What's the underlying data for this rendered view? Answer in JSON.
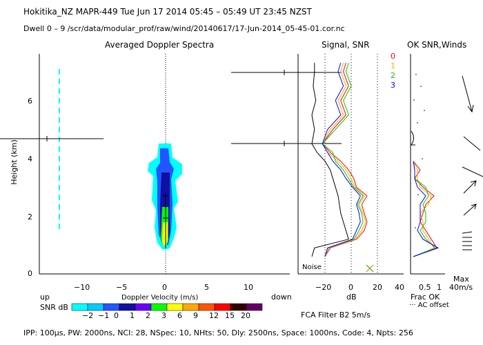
{
  "header": {
    "line1": "Hokitika_NZ   MAPR-449   Tue Jun 17 2014 05:45 – 05:49 UT 23:45 NZST",
    "line2": "Dwell   0 –   9    /scr/data/modular_prof/raw/wind/20140617/17-Jun-2014_05-45-01.cor.nc"
  },
  "footer": "IPP: 100μs,   PW: 2000ns,   NCI:  28,   NSpec: 10,  NHts: 50,   Dly: 2500ns,   Space: 1000ns,   Code: 4,   Npts: 256",
  "colorbar": {
    "label": "SNR dB",
    "ticks": [
      "−2",
      "−1",
      "0",
      "1",
      "2",
      "3",
      "6",
      "9",
      "12",
      "15",
      "20"
    ],
    "colors": [
      "#00ffff",
      "#00ccff",
      "#2255ff",
      "#1010a0",
      "#6a00ff",
      "#00ff00",
      "#ffff00",
      "#ffaa00",
      "#ff5500",
      "#ff0000",
      "#330000",
      "#660066"
    ]
  },
  "spectra_panel": {
    "title": "Averaged Doppler Spectra",
    "xlabel": "Doppler Velocity (m/s)",
    "ylabel": "Height (km)",
    "up_label": "up",
    "down_label": "down",
    "xticks": [
      "−10",
      "−5",
      "0",
      "5",
      "10"
    ],
    "yticks": [
      "0",
      "2",
      "4",
      "6"
    ]
  },
  "signal_panel": {
    "title": "Signal, SNR",
    "xlabel": "dB",
    "xticks": [
      "−20",
      "0",
      "20",
      "40"
    ],
    "noise_label": "Noise",
    "filter_label": "FCA Filter B2   5m/s"
  },
  "ok_panel": {
    "title": "OK SNR,Winds",
    "beam_labels": [
      {
        "text": "0",
        "color": "#ff0000"
      },
      {
        "text": "1",
        "color": "#ffaa00"
      },
      {
        "text": "2",
        "color": "#00cc00"
      },
      {
        "text": "3",
        "color": "#0000ff"
      }
    ],
    "xticks": [
      "0.5",
      "1"
    ],
    "frac_label": "Frac OK",
    "offset_label": "··· AC offset"
  },
  "wind_panel": {
    "max_label": "Max",
    "scale_label": "40m/s"
  },
  "chart_data": [
    {
      "type": "heatmap",
      "title": "Averaged Doppler Spectra",
      "xlabel": "Doppler Velocity (m/s)",
      "ylabel": "Height (km)",
      "xlim": [
        -19,
        15
      ],
      "ylim": [
        0,
        7.6
      ],
      "legend": "SNR dB",
      "series": [
        {
          "name": "main echo",
          "x_center": 0,
          "height_range_km": [
            0.8,
            4.5
          ]
        },
        {
          "name": "ground clutter line",
          "x_center": -12.5,
          "height_range_km": [
            1.4,
            7.1
          ]
        }
      ]
    },
    {
      "type": "line",
      "title": "Signal, SNR",
      "xlabel": "dB",
      "ylabel": "Height (km)",
      "xlim": [
        -40,
        40
      ],
      "ylim": [
        0,
        7.6
      ],
      "heights_km": [
        0.6,
        0.9,
        1.2,
        1.5,
        1.8,
        2.1,
        2.4,
        2.7,
        3.0,
        3.3,
        3.6,
        3.9,
        4.2,
        4.5,
        5.0,
        5.5,
        6.0,
        6.5,
        7.0,
        7.3
      ],
      "series": [
        {
          "name": "Noise",
          "x": [
            -30,
            -28,
            -2,
            -4,
            -6,
            -8,
            -9,
            -10,
            -12,
            -14,
            -16,
            -20,
            -26,
            -30,
            -28,
            -30,
            -27,
            -29,
            -28,
            -28
          ]
        },
        {
          "name": "0",
          "x": [
            -20,
            -16,
            4,
            10,
            12,
            10,
            8,
            12,
            4,
            2,
            -2,
            -8,
            -16,
            -22,
            -14,
            -4,
            -8,
            -2,
            -6,
            -4
          ]
        },
        {
          "name": "1",
          "x": [
            -20,
            -17,
            3,
            8,
            11,
            9,
            6,
            10,
            3,
            0,
            -4,
            -10,
            -18,
            -22,
            -16,
            -6,
            -10,
            -4,
            -8,
            -6
          ]
        },
        {
          "name": "2",
          "x": [
            -20,
            -18,
            2,
            6,
            9,
            8,
            5,
            9,
            2,
            -2,
            -6,
            -12,
            -14,
            -22,
            -12,
            -2,
            -6,
            0,
            -4,
            -2
          ]
        },
        {
          "name": "3",
          "x": [
            -20,
            -18,
            1,
            4,
            7,
            6,
            4,
            7,
            1,
            -4,
            -8,
            -14,
            -18,
            -22,
            -18,
            -8,
            -12,
            -6,
            -10,
            -8
          ]
        }
      ]
    },
    {
      "type": "line",
      "title": "OK SNR,Winds",
      "xlabel": "Frac OK",
      "ylabel": "Height (km)",
      "xlim": [
        0,
        1
      ],
      "ylim": [
        0,
        7.6
      ],
      "heights_km": [
        0.6,
        0.9,
        1.2,
        1.5,
        1.8,
        2.1,
        2.4,
        2.7,
        3.0,
        3.3,
        3.6,
        3.9
      ],
      "series": [
        {
          "name": "0",
          "x": [
            0.05,
            0.9,
            0.7,
            0.5,
            0.3,
            0.4,
            0.5,
            0.8,
            0.4,
            0.1,
            0.3,
            0.05
          ]
        },
        {
          "name": "1",
          "x": [
            0.05,
            0.8,
            0.6,
            0.4,
            0.4,
            0.3,
            0.6,
            0.7,
            0.3,
            0.2,
            0.2,
            0.05
          ]
        },
        {
          "name": "2",
          "x": [
            0.05,
            0.85,
            0.5,
            0.3,
            0.5,
            0.5,
            0.4,
            0.6,
            0.5,
            0.1,
            0.1,
            0.05
          ]
        },
        {
          "name": "3",
          "x": [
            0.05,
            0.95,
            0.4,
            0.2,
            0.3,
            0.3,
            0.3,
            0.5,
            0.2,
            0.1,
            0.1,
            0.05
          ]
        }
      ]
    }
  ]
}
